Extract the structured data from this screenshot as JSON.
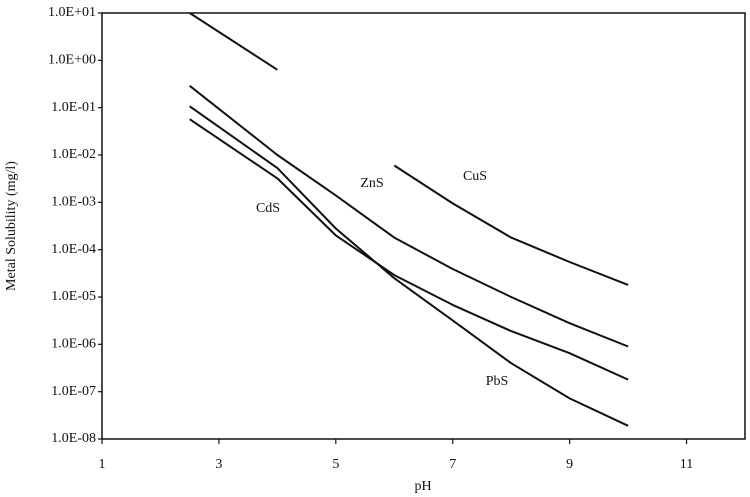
{
  "chart_data": {
    "type": "line",
    "xlabel": "pH",
    "ylabel": "Metal Solubility (mg/l)",
    "x": [
      2.5,
      4,
      5,
      6,
      7,
      8,
      9,
      10
    ],
    "series": [
      {
        "name": "CuS",
        "color": "#111111",
        "values": [
          10,
          0.63,
          null,
          0.006,
          0.00095,
          0.00018,
          5.5e-05,
          1.8e-05
        ]
      },
      {
        "name": "ZnS",
        "color": "#111111",
        "values": [
          0.29,
          0.01,
          0.0014,
          0.00018,
          3.9e-05,
          1e-05,
          2.8e-06,
          9e-07
        ]
      },
      {
        "name": "CdS",
        "color": "#111111",
        "values": [
          0.057,
          0.0032,
          0.0002,
          2.9e-05,
          6.8e-06,
          1.9e-06,
          6.5e-07,
          1.8e-07
        ]
      },
      {
        "name": "PbS",
        "color": "#111111",
        "values": [
          0.107,
          0.0053,
          0.00028,
          2.5e-05,
          3.2e-06,
          4e-07,
          7.2e-08,
          1.9e-08
        ]
      }
    ],
    "xlim": [
      1,
      12
    ],
    "xticks": [
      1,
      3,
      5,
      7,
      9,
      11
    ],
    "ylim": [
      1e-08,
      10
    ],
    "yscale": "log",
    "yticks": [
      {
        "value": 10,
        "label": "1.0E+01"
      },
      {
        "value": 1,
        "label": "1.0E+00"
      },
      {
        "value": 0.1,
        "label": "1.0E-01"
      },
      {
        "value": 0.01,
        "label": "1.0E-02"
      },
      {
        "value": 0.001,
        "label": "1.0E-03"
      },
      {
        "value": 0.0001,
        "label": "1.0E-04"
      },
      {
        "value": 1e-05,
        "label": "1.0E-05"
      },
      {
        "value": 1e-06,
        "label": "1.0E-06"
      },
      {
        "value": 1e-07,
        "label": "1.0E-07"
      },
      {
        "value": 1e-08,
        "label": "1.0E-08"
      }
    ],
    "grid": false
  }
}
